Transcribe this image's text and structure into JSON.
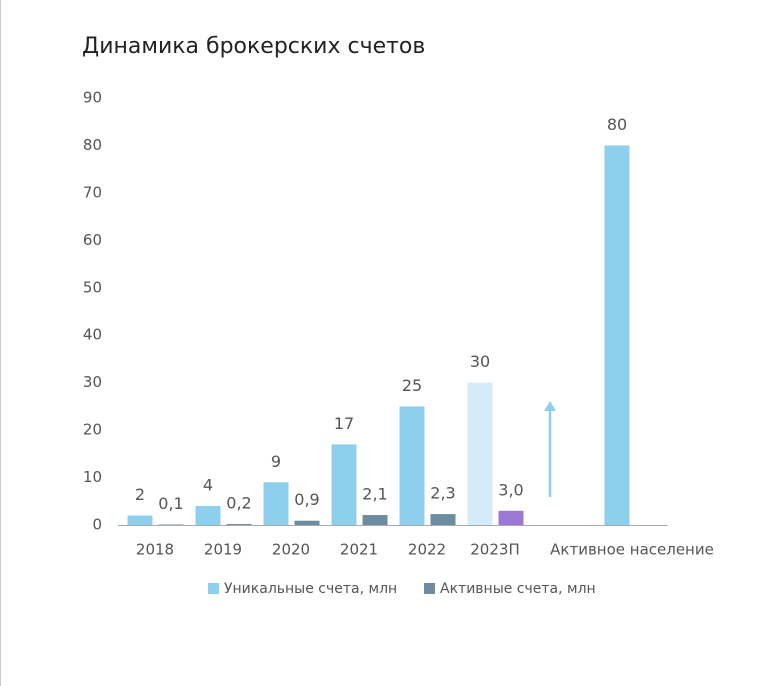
{
  "chart_data": {
    "type": "bar",
    "title": "Динамика брокерских счетов",
    "categories": [
      "2018",
      "2019",
      "2020",
      "2021",
      "2022",
      "2023П",
      "Активное население"
    ],
    "series": [
      {
        "name": "Уникальные счета, млн",
        "color": "#8ecfed",
        "point_colors": [
          null,
          null,
          null,
          null,
          null,
          "#d4ecf8",
          null
        ],
        "values": [
          2,
          4,
          9,
          17,
          25,
          30,
          80
        ]
      },
      {
        "name": "Активные счета, млн",
        "color": "#6e8ca0",
        "point_colors": [
          null,
          null,
          null,
          null,
          null,
          "#9a78d6",
          null
        ],
        "values": [
          0.1,
          0.2,
          0.9,
          2.1,
          2.3,
          3.0,
          null
        ],
        "value_labels": [
          "0,1",
          "0,2",
          "0,9",
          "2,1",
          "2,3",
          "3,0",
          null
        ]
      }
    ],
    "ylim": [
      0,
      90
    ],
    "yticks": [
      0,
      10,
      20,
      30,
      40,
      50,
      60,
      70,
      80,
      90
    ],
    "grid": false
  }
}
